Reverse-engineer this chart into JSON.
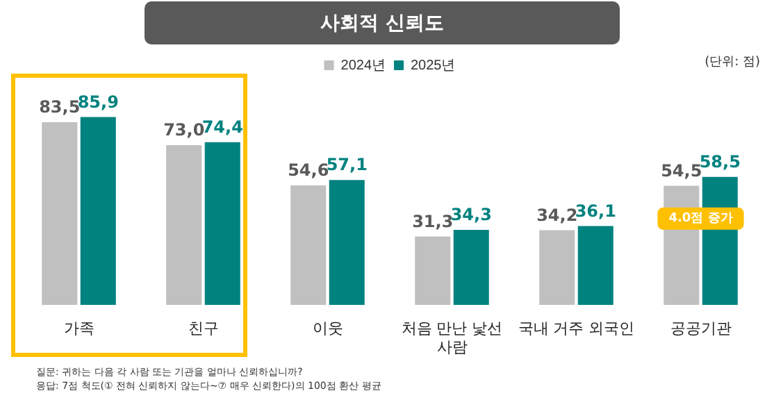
{
  "chart_data": {
    "type": "bar",
    "title": "사회적 신뢰도",
    "categories": [
      "가족",
      "친구",
      "이웃",
      "처음 만난 낯선 사람",
      "국내 거주 외국인",
      "공공기관"
    ],
    "series": [
      {
        "name": "2024년",
        "color": "#c0c0c0",
        "values": [
          83.5,
          73.0,
          54.6,
          31.3,
          34.2,
          54.5
        ],
        "value_labels": [
          "83,5",
          "73,0",
          "54,6",
          "31,3",
          "34,2",
          "54,5"
        ]
      },
      {
        "name": "2025년",
        "color": "#00827f",
        "values": [
          85.9,
          74.4,
          57.1,
          34.3,
          36.1,
          58.5
        ],
        "value_labels": [
          "85,9",
          "74,4",
          "57,1",
          "34,3",
          "36,1",
          "58,5"
        ]
      }
    ],
    "legend": "top",
    "annotations": [
      "(단위: 점)",
      "질문: 귀하는 다음 각 사람 또는 기관을 얼마나 신뢰하십니까?",
      "응답: 7점 척도(① 전혀 신뢰하지 않는다~⑦ 매우 신뢰한다)의 100점 환산 평균",
      {
        "text": "4.0점 증가",
        "x": "공공기관",
        "y": 58.5
      }
    ]
  }
}
